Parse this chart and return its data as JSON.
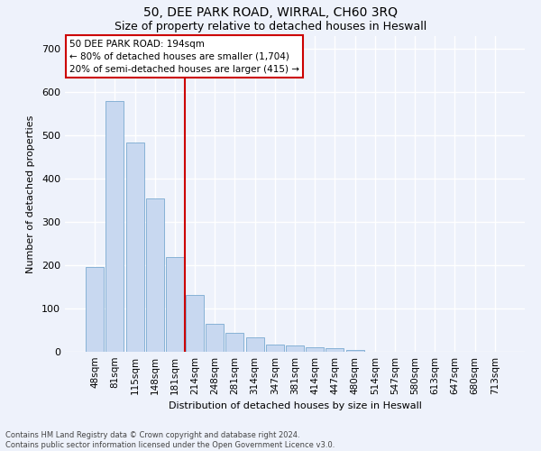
{
  "title": "50, DEE PARK ROAD, WIRRAL, CH60 3RQ",
  "subtitle": "Size of property relative to detached houses in Heswall",
  "xlabel": "Distribution of detached houses by size in Heswall",
  "ylabel": "Number of detached properties",
  "bar_labels": [
    "48sqm",
    "81sqm",
    "115sqm",
    "148sqm",
    "181sqm",
    "214sqm",
    "248sqm",
    "281sqm",
    "314sqm",
    "347sqm",
    "381sqm",
    "414sqm",
    "447sqm",
    "480sqm",
    "514sqm",
    "547sqm",
    "580sqm",
    "613sqm",
    "647sqm",
    "680sqm",
    "713sqm"
  ],
  "bar_values": [
    197,
    580,
    484,
    354,
    219,
    132,
    64,
    44,
    34,
    16,
    15,
    10,
    8,
    5,
    0,
    0,
    0,
    0,
    0,
    0,
    0
  ],
  "bar_color": "#c8d8f0",
  "bar_edge_color": "#7aaad0",
  "vline_x_index": 5,
  "vline_color": "#cc0000",
  "annotation_text": "50 DEE PARK ROAD: 194sqm\n← 80% of detached houses are smaller (1,704)\n20% of semi-detached houses are larger (415) →",
  "annotation_box_color": "#ffffff",
  "annotation_box_edge": "#cc0000",
  "ylim": [
    0,
    730
  ],
  "yticks": [
    0,
    100,
    200,
    300,
    400,
    500,
    600,
    700
  ],
  "footer_text": "Contains HM Land Registry data © Crown copyright and database right 2024.\nContains public sector information licensed under the Open Government Licence v3.0.",
  "background_color": "#eef2fb",
  "grid_color": "#ffffff",
  "title_fontsize": 10,
  "subtitle_fontsize": 9,
  "axis_label_fontsize": 8,
  "tick_fontsize": 7.5,
  "annotation_fontsize": 7.5,
  "footer_fontsize": 6.0
}
